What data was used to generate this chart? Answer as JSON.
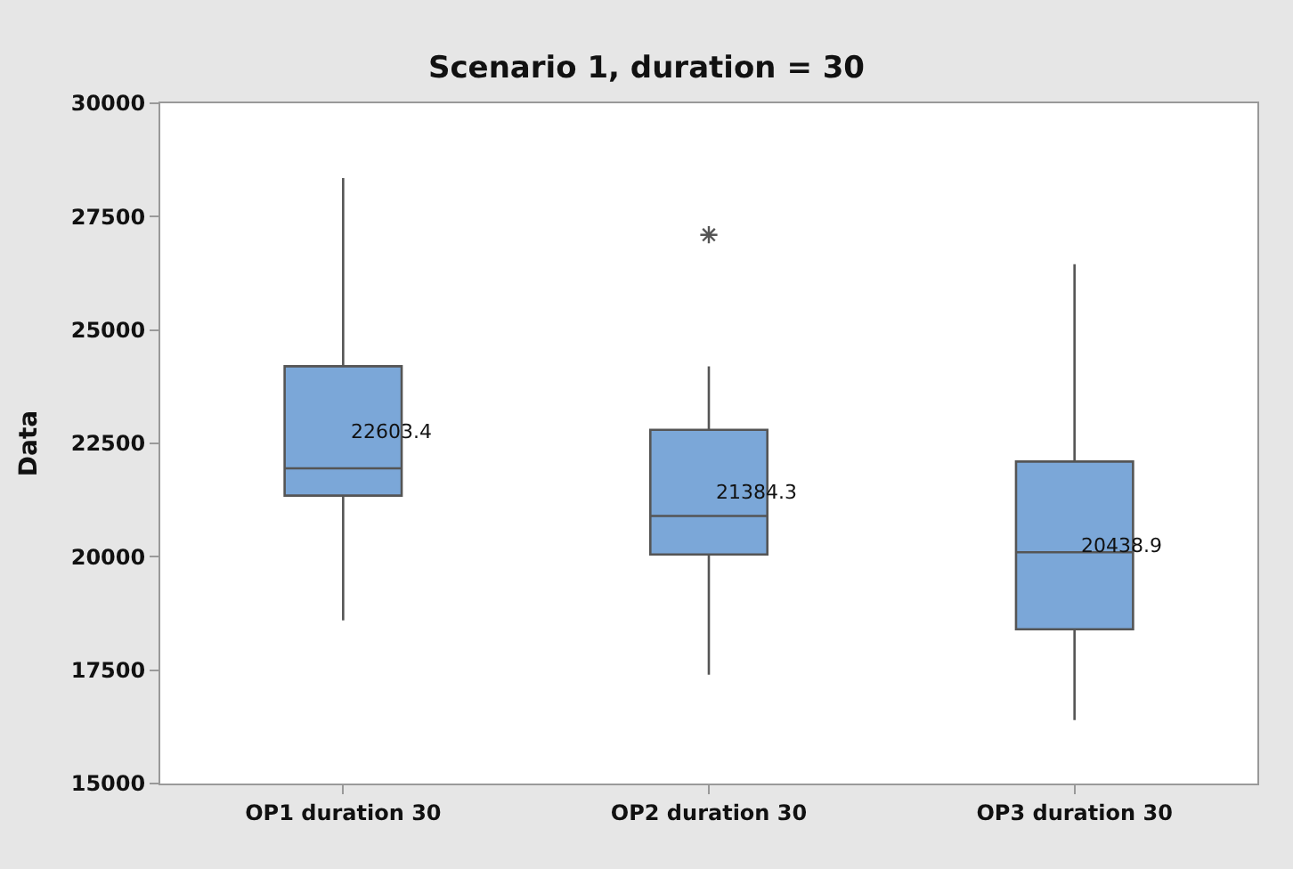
{
  "chart_data": {
    "type": "box",
    "title": "Scenario 1, duration = 30",
    "ylabel": "Data",
    "categories": [
      "OP1 duration 30",
      "OP2 duration 30",
      "OP3 duration 30"
    ],
    "color": "#7ba7d8",
    "boxes": [
      {
        "low": 18600,
        "q1": 21350,
        "median": 21950,
        "q3": 24200,
        "high": 28350
      },
      {
        "low": 17400,
        "q1": 20050,
        "median": 20900,
        "q3": 22800,
        "high": 24200,
        "outliers": [
          27100
        ]
      },
      {
        "low": 16400,
        "q1": 18400,
        "median": 20100,
        "q3": 22100,
        "high": 26450
      }
    ],
    "annotations": [
      "22603.4",
      "21384.3",
      "20438.9"
    ],
    "ylim": [
      15000,
      30000
    ],
    "yticks": [
      15000,
      17500,
      20000,
      22500,
      25000,
      27500,
      30000
    ]
  }
}
